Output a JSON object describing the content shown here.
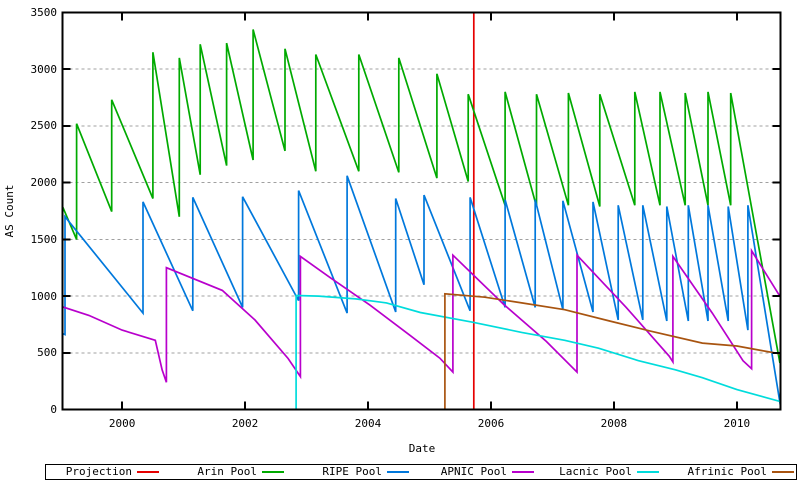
{
  "chart_data": {
    "type": "line",
    "title": "",
    "xlabel": "Date",
    "ylabel": "AS Count",
    "xlim": [
      1999.03,
      2010.71
    ],
    "ylim": [
      0,
      3500
    ],
    "x_ticks": [
      2000,
      2002,
      2004,
      2006,
      2008,
      2010
    ],
    "y_ticks": [
      0,
      500,
      1000,
      1500,
      2000,
      2500,
      3000,
      3500
    ],
    "grid": "horizontal-dashed",
    "legend_position": "bottom",
    "background": "#ffffff",
    "axis_color": "#000000",
    "grid_color": "#a0a0a0",
    "series": [
      {
        "name": "Projection",
        "color": "#e60000",
        "points": [
          [
            2005.72,
            0
          ],
          [
            2005.72,
            3500
          ]
        ]
      },
      {
        "name": "Arin Pool",
        "color": "#00aa00",
        "points": [
          [
            1999.03,
            1790
          ],
          [
            1999.26,
            1500
          ],
          [
            1999.26,
            2520
          ],
          [
            1999.83,
            1745
          ],
          [
            1999.83,
            2730
          ],
          [
            2000.5,
            1860
          ],
          [
            2000.5,
            3150
          ],
          [
            2000.93,
            1700
          ],
          [
            2000.93,
            3100
          ],
          [
            2001.27,
            2070
          ],
          [
            2001.27,
            3220
          ],
          [
            2001.7,
            2150
          ],
          [
            2001.7,
            3230
          ],
          [
            2002.13,
            2200
          ],
          [
            2002.13,
            3350
          ],
          [
            2002.65,
            2280
          ],
          [
            2002.65,
            3180
          ],
          [
            2003.15,
            2100
          ],
          [
            2003.15,
            3130
          ],
          [
            2003.85,
            2100
          ],
          [
            2003.85,
            3130
          ],
          [
            2004.5,
            2090
          ],
          [
            2004.5,
            3100
          ],
          [
            2005.12,
            2040
          ],
          [
            2005.12,
            2960
          ],
          [
            2005.63,
            2010
          ],
          [
            2005.63,
            2780
          ],
          [
            2006.23,
            1800
          ],
          [
            2006.23,
            2800
          ],
          [
            2006.74,
            1790
          ],
          [
            2006.74,
            2780
          ],
          [
            2007.26,
            1800
          ],
          [
            2007.26,
            2790
          ],
          [
            2007.77,
            1790
          ],
          [
            2007.77,
            2780
          ],
          [
            2008.34,
            1800
          ],
          [
            2008.34,
            2800
          ],
          [
            2008.75,
            1800
          ],
          [
            2008.75,
            2800
          ],
          [
            2009.16,
            1800
          ],
          [
            2009.16,
            2790
          ],
          [
            2009.53,
            1800
          ],
          [
            2009.53,
            2800
          ],
          [
            2009.9,
            1800
          ],
          [
            2009.9,
            2790
          ],
          [
            2010.7,
            410
          ]
        ]
      },
      {
        "name": "RIPE Pool",
        "color": "#0078dc",
        "points": [
          [
            1999.03,
            670
          ],
          [
            1999.07,
            660
          ],
          [
            1999.07,
            1700
          ],
          [
            2000.34,
            850
          ],
          [
            2000.34,
            1830
          ],
          [
            2001.15,
            870
          ],
          [
            2001.15,
            1870
          ],
          [
            2001.96,
            900
          ],
          [
            2001.96,
            1875
          ],
          [
            2002.87,
            960
          ],
          [
            2002.87,
            1930
          ],
          [
            2003.66,
            850
          ],
          [
            2003.66,
            2060
          ],
          [
            2004.45,
            860
          ],
          [
            2004.45,
            1860
          ],
          [
            2004.91,
            1100
          ],
          [
            2004.91,
            1890
          ],
          [
            2005.66,
            870
          ],
          [
            2005.66,
            1870
          ],
          [
            2006.23,
            900
          ],
          [
            2006.23,
            1850
          ],
          [
            2006.72,
            900
          ],
          [
            2006.72,
            1850
          ],
          [
            2007.17,
            880
          ],
          [
            2007.17,
            1840
          ],
          [
            2007.66,
            860
          ],
          [
            2007.66,
            1830
          ],
          [
            2008.07,
            790
          ],
          [
            2008.07,
            1800
          ],
          [
            2008.47,
            790
          ],
          [
            2008.47,
            1800
          ],
          [
            2008.86,
            780
          ],
          [
            2008.86,
            1790
          ],
          [
            2009.21,
            780
          ],
          [
            2009.21,
            1800
          ],
          [
            2009.53,
            780
          ],
          [
            2009.53,
            1800
          ],
          [
            2009.86,
            780
          ],
          [
            2009.86,
            1790
          ],
          [
            2010.18,
            700
          ],
          [
            2010.18,
            1800
          ],
          [
            2010.71,
            30
          ]
        ]
      },
      {
        "name": "APNIC Pool",
        "color": "#b800cc",
        "points": [
          [
            1999.03,
            905
          ],
          [
            1999.46,
            830
          ],
          [
            2000.0,
            700
          ],
          [
            2000.54,
            610
          ],
          [
            2000.65,
            350
          ],
          [
            2000.72,
            240
          ],
          [
            2000.72,
            1250
          ],
          [
            2001.63,
            1050
          ],
          [
            2002.16,
            790
          ],
          [
            2002.7,
            450
          ],
          [
            2002.9,
            290
          ],
          [
            2002.9,
            1350
          ],
          [
            2003.38,
            1165
          ],
          [
            2004.03,
            920
          ],
          [
            2004.68,
            655
          ],
          [
            2005.17,
            452
          ],
          [
            2005.38,
            330
          ],
          [
            2005.38,
            1360
          ],
          [
            2006.2,
            930
          ],
          [
            2006.9,
            600
          ],
          [
            2007.4,
            330
          ],
          [
            2007.4,
            1360
          ],
          [
            2008.2,
            900
          ],
          [
            2008.9,
            470
          ],
          [
            2008.96,
            420
          ],
          [
            2008.96,
            1350
          ],
          [
            2009.6,
            850
          ],
          [
            2010.1,
            430
          ],
          [
            2010.24,
            360
          ],
          [
            2010.24,
            1400
          ],
          [
            2010.71,
            990
          ]
        ]
      },
      {
        "name": "Lacnic Pool",
        "color": "#00dcdc",
        "points": [
          [
            2002.83,
            0
          ],
          [
            2002.83,
            1005
          ],
          [
            2003.2,
            1000
          ],
          [
            2003.8,
            975
          ],
          [
            2004.3,
            940
          ],
          [
            2004.85,
            855
          ],
          [
            2005.7,
            770
          ],
          [
            2006.5,
            680
          ],
          [
            2007.2,
            610
          ],
          [
            2007.75,
            540
          ],
          [
            2008.4,
            430
          ],
          [
            2009.0,
            350
          ],
          [
            2009.44,
            280
          ],
          [
            2010.0,
            175
          ],
          [
            2010.71,
            70
          ]
        ]
      },
      {
        "name": "Afrinic Pool",
        "color": "#a85410",
        "points": [
          [
            2005.25,
            0
          ],
          [
            2005.25,
            1020
          ],
          [
            2005.9,
            990
          ],
          [
            2006.5,
            940
          ],
          [
            2007.2,
            880
          ],
          [
            2007.93,
            780
          ],
          [
            2008.6,
            690
          ],
          [
            2009.44,
            585
          ],
          [
            2010.0,
            560
          ],
          [
            2010.4,
            520
          ],
          [
            2010.71,
            490
          ]
        ]
      }
    ]
  }
}
